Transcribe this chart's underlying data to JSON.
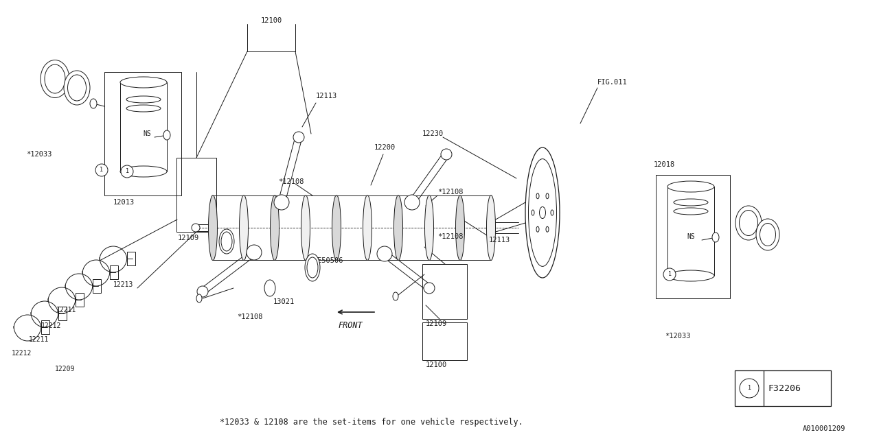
{
  "bg_color": "#ffffff",
  "line_color": "#1a1a1a",
  "fig_width": 12.8,
  "fig_height": 6.4,
  "subtitle": "*12033 & 12108 are the set-items for one vehicle respectively.",
  "diagram_id": "A010001209",
  "legend_code": "F32206"
}
